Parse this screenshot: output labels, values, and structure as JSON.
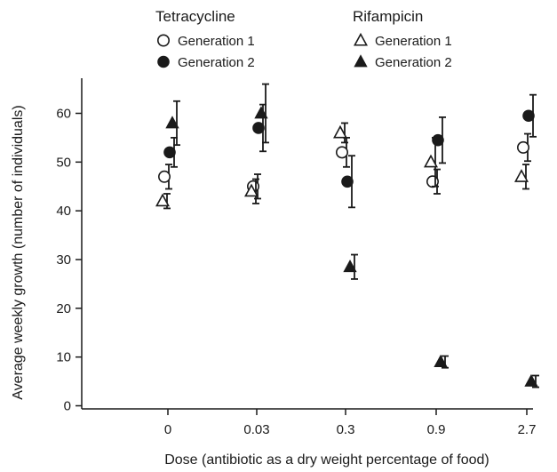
{
  "chart_data": {
    "type": "scatter",
    "xlabel": "Dose (antibiotic as a dry weight percentage of food)",
    "ylabel": "Average weekly growth (number of individuals)",
    "categories": [
      "0",
      "0.03",
      "0.3",
      "0.9",
      "2.7"
    ],
    "yticks": [
      0,
      10,
      20,
      30,
      40,
      50,
      60
    ],
    "ylim": [
      0,
      66
    ],
    "grid": false,
    "legend_placement": "top",
    "legend_groups": [
      {
        "title": "Tetracycline",
        "entries": [
          "Generation 1",
          "Generation 2"
        ]
      },
      {
        "title": "Rifampicin",
        "entries": [
          "Generation 1",
          "Generation 2"
        ]
      }
    ],
    "series": [
      {
        "name": "Generation 1",
        "group": "Tetracycline",
        "marker": "circle-open",
        "values": [
          47,
          45,
          52,
          46,
          53
        ],
        "err": [
          2.5,
          2.5,
          3,
          2.5,
          2.8
        ]
      },
      {
        "name": "Generation 2",
        "group": "Tetracycline",
        "marker": "circle-filled",
        "values": [
          52,
          57,
          46,
          54.5,
          59.5
        ],
        "err": [
          3,
          4.8,
          5.3,
          4.7,
          4.3
        ]
      },
      {
        "name": "Generation 1",
        "group": "Rifampicin",
        "marker": "triangle-open",
        "values": [
          42,
          44,
          56,
          50,
          47
        ],
        "err": [
          1.5,
          2.5,
          2,
          5,
          2.5
        ]
      },
      {
        "name": "Generation 2",
        "group": "Rifampicin",
        "marker": "triangle-filled",
        "values": [
          58,
          60,
          28.5,
          9,
          5
        ],
        "err": [
          4.5,
          6,
          2.5,
          1.2,
          1.2
        ]
      }
    ],
    "marker_color": "#1a1a1a"
  }
}
